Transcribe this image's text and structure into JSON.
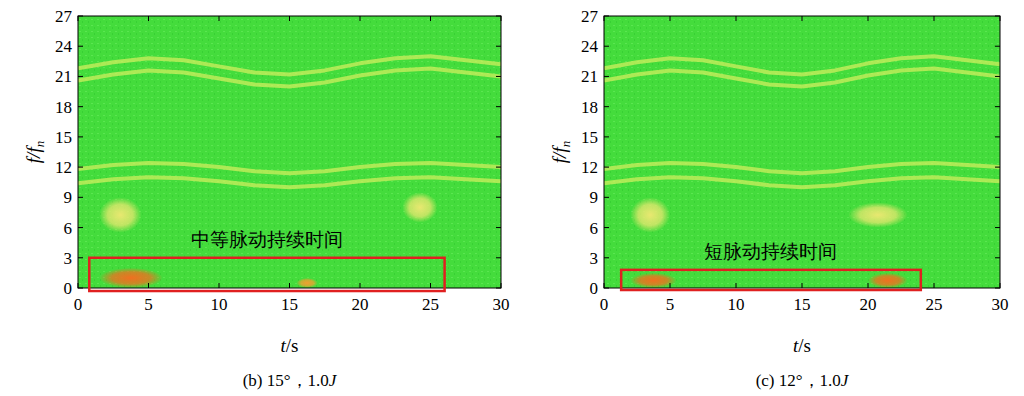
{
  "chart_data": [
    {
      "type": "spectrogram",
      "title": "(b) 15°，1.0J",
      "xlabel": "t/s",
      "ylabel": "f/fn",
      "xlim": [
        0,
        30
      ],
      "xticks": [
        0,
        5,
        10,
        15,
        20,
        25,
        30
      ],
      "ylim": [
        0,
        27
      ],
      "yticks": [
        0,
        3,
        6,
        9,
        12,
        15,
        18,
        21,
        24,
        27
      ],
      "x": [
        0,
        2.5,
        5,
        7.5,
        10,
        12.5,
        15,
        17.5,
        20,
        22.5,
        25,
        27.5,
        30
      ],
      "series": [
        {
          "color": "#d8f060",
          "values": [
            21.8,
            22.4,
            22.8,
            22.6,
            22.0,
            21.4,
            21.2,
            21.6,
            22.3,
            22.8,
            23.0,
            22.6,
            22.2
          ]
        },
        {
          "color": "#d8f060",
          "values": [
            20.6,
            21.2,
            21.6,
            21.4,
            20.8,
            20.2,
            20.0,
            20.4,
            21.1,
            21.6,
            21.8,
            21.4,
            21.0
          ]
        },
        {
          "color": "#d8f060",
          "values": [
            11.8,
            12.2,
            12.4,
            12.3,
            12.0,
            11.6,
            11.4,
            11.6,
            12.0,
            12.3,
            12.4,
            12.2,
            12.0
          ]
        },
        {
          "color": "#d8f060",
          "values": [
            10.4,
            10.8,
            11.0,
            10.9,
            10.6,
            10.2,
            10.0,
            10.2,
            10.6,
            10.9,
            11.0,
            10.8,
            10.6
          ]
        }
      ],
      "hotspots": [
        {
          "t": [
            1.5,
            6.0
          ],
          "f": [
            0,
            2.0
          ],
          "color": "#f07020"
        },
        {
          "t": [
            1.5,
            4.5
          ],
          "f": [
            5.5,
            9.0
          ],
          "color": "#e8e870"
        },
        {
          "t": [
            15.5,
            17.0
          ],
          "f": [
            0,
            1.0
          ],
          "color": "#f0a030"
        },
        {
          "t": [
            23.0,
            25.5
          ],
          "f": [
            6.5,
            9.5
          ],
          "color": "#e8e870"
        }
      ],
      "box": {
        "t": [
          0.8,
          26.0
        ],
        "f": [
          -0.3,
          3.0
        ],
        "color": "#e02020"
      },
      "annotation": "中等脉动持续时间"
    },
    {
      "type": "spectrogram",
      "title": "(c) 12°，1.0J",
      "xlabel": "t/s",
      "ylabel": "f/fn",
      "xlim": [
        0,
        30
      ],
      "xticks": [
        0,
        5,
        10,
        15,
        20,
        25,
        30
      ],
      "ylim": [
        0,
        27
      ],
      "yticks": [
        0,
        3,
        6,
        9,
        12,
        15,
        18,
        21,
        24,
        27
      ],
      "x": [
        0,
        2.5,
        5,
        7.5,
        10,
        12.5,
        15,
        17.5,
        20,
        22.5,
        25,
        27.5,
        30
      ],
      "series": [
        {
          "color": "#d8f060",
          "values": [
            21.8,
            22.4,
            22.8,
            22.6,
            22.0,
            21.4,
            21.2,
            21.6,
            22.3,
            22.8,
            23.0,
            22.6,
            22.2
          ]
        },
        {
          "color": "#d8f060",
          "values": [
            20.6,
            21.2,
            21.6,
            21.4,
            20.8,
            20.2,
            20.0,
            20.4,
            21.1,
            21.6,
            21.8,
            21.4,
            21.0
          ]
        },
        {
          "color": "#d8f060",
          "values": [
            11.8,
            12.2,
            12.4,
            12.3,
            12.0,
            11.6,
            11.4,
            11.6,
            12.0,
            12.3,
            12.4,
            12.2,
            12.0
          ]
        },
        {
          "color": "#d8f060",
          "values": [
            10.4,
            10.8,
            11.0,
            10.9,
            10.6,
            10.2,
            10.0,
            10.2,
            10.6,
            10.9,
            11.0,
            10.8,
            10.6
          ]
        }
      ],
      "hotspots": [
        {
          "t": [
            2.0,
            5.5
          ],
          "f": [
            0,
            1.5
          ],
          "color": "#f07020"
        },
        {
          "t": [
            20.0,
            23.0
          ],
          "f": [
            0,
            1.5
          ],
          "color": "#f07020"
        },
        {
          "t": [
            2.0,
            5.0
          ],
          "f": [
            5.5,
            9.0
          ],
          "color": "#e8e870"
        },
        {
          "t": [
            18.5,
            23.0
          ],
          "f": [
            6.0,
            8.5
          ],
          "color": "#e8e870"
        }
      ],
      "box": {
        "t": [
          1.3,
          24.0
        ],
        "f": [
          -0.2,
          1.8
        ],
        "color": "#e02020"
      },
      "annotation": "短脉动持续时间"
    }
  ]
}
